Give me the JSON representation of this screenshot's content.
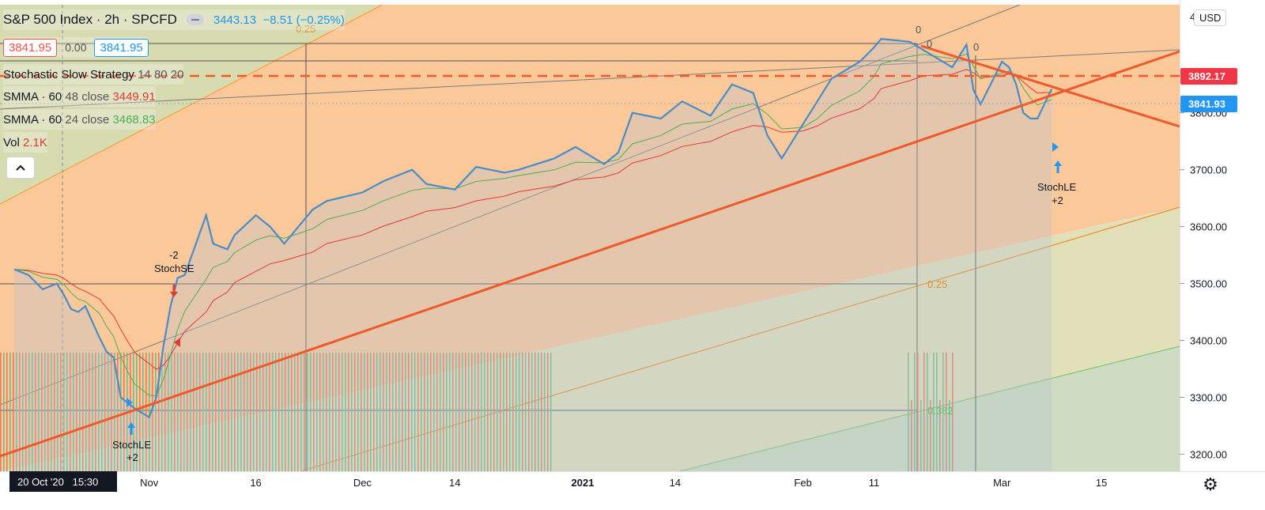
{
  "header": {
    "symbol": "S&P 500 Index",
    "interval": "2h",
    "exchange": "SPCFD",
    "last": "3443.13",
    "change": "−8.51 (−0.25%)",
    "bid": "3841.95",
    "spread": "0.00",
    "ask": "3841.95"
  },
  "indicators": {
    "strategy": "Stochastic Slow Strategy",
    "strategy_params": "14 80 20",
    "smma1_name": "SMMA · 60",
    "smma1_params": "48 close",
    "smma1_value": "3449.91",
    "smma2_name": "SMMA · 60",
    "smma2_params": "24 close",
    "smma2_value": "3468.83",
    "vol_label": "Vol",
    "vol_value": "2.1K"
  },
  "currency": "USD",
  "crosshair_date": "20 Oct '20   15:30",
  "price_tags": {
    "resistance": "3892.17",
    "last": "3841.93"
  },
  "colors": {
    "line": "#4a8cc7",
    "smma_red": "#e53935",
    "smma_green": "#4caf50",
    "trend": "#f05a2a",
    "bg_orange": "#fbc89a",
    "fib_green": "#d9e3bf"
  },
  "chart_data": {
    "type": "line",
    "title": "S&P 500 Index",
    "y_ticks": [
      3200,
      3300,
      3400,
      3500,
      3600,
      3700,
      3800
    ],
    "y_tick_labels": [
      "3200.00",
      "3300.00",
      "3400.00",
      "3500.00",
      "3600.00",
      "3700.00",
      "3800.00"
    ],
    "y_top_label": "4",
    "ylim": [
      3170,
      3990
    ],
    "x_tick_labels": [
      "Nov",
      "16",
      "Dec",
      "14",
      "2021",
      "14",
      "Feb",
      "11",
      "Mar",
      "15"
    ],
    "x_tick_dates": [
      "2020-11-01",
      "2020-11-16",
      "2020-12-01",
      "2020-12-14",
      "2021-01-01",
      "2021-01-14",
      "2021-02-01",
      "2021-02-11",
      "2021-03-01",
      "2021-03-15"
    ],
    "series": [
      {
        "name": "S&P 500 Index",
        "dates": [
          "2020-10-13",
          "2020-10-15",
          "2020-10-17",
          "2020-10-19",
          "2020-10-20",
          "2020-10-21",
          "2020-10-22",
          "2020-10-23",
          "2020-10-25",
          "2020-10-26",
          "2020-10-27",
          "2020-10-28",
          "2020-10-29",
          "2020-10-30",
          "2020-11-01",
          "2020-11-02",
          "2020-11-03",
          "2020-11-04",
          "2020-11-05",
          "2020-11-06",
          "2020-11-09",
          "2020-11-10",
          "2020-11-12",
          "2020-11-13",
          "2020-11-16",
          "2020-11-18",
          "2020-11-20",
          "2020-11-24",
          "2020-11-26",
          "2020-12-01",
          "2020-12-04",
          "2020-12-08",
          "2020-12-10",
          "2020-12-14",
          "2020-12-17",
          "2020-12-21",
          "2020-12-23",
          "2020-12-28",
          "2020-12-31",
          "2021-01-04",
          "2021-01-06",
          "2021-01-08",
          "2021-01-12",
          "2021-01-15",
          "2021-01-19",
          "2021-01-22",
          "2021-01-25",
          "2021-01-27",
          "2021-01-29",
          "2021-02-01",
          "2021-02-03",
          "2021-02-05",
          "2021-02-09",
          "2021-02-11",
          "2021-02-12",
          "2021-02-16",
          "2021-02-18",
          "2021-02-22",
          "2021-02-24",
          "2021-02-25",
          "2021-02-26",
          "2021-03-01",
          "2021-03-02",
          "2021-03-03",
          "2021-03-04",
          "2021-03-05",
          "2021-03-06",
          "2021-03-08"
        ],
        "values": [
          3525,
          3515,
          3490,
          3500,
          3480,
          3455,
          3450,
          3460,
          3405,
          3380,
          3370,
          3300,
          3290,
          3280,
          3265,
          3300,
          3390,
          3460,
          3510,
          3515,
          3620,
          3570,
          3560,
          3585,
          3620,
          3600,
          3570,
          3630,
          3645,
          3660,
          3680,
          3700,
          3675,
          3665,
          3705,
          3695,
          3700,
          3720,
          3740,
          3710,
          3730,
          3800,
          3790,
          3820,
          3795,
          3850,
          3835,
          3760,
          3720,
          3780,
          3820,
          3860,
          3890,
          3915,
          3930,
          3925,
          3910,
          3880,
          3920,
          3840,
          3815,
          3890,
          3880,
          3850,
          3800,
          3790,
          3790,
          3842
        ]
      },
      {
        "name": "SMMA · 60 48 close",
        "color": "red"
      },
      {
        "name": "SMMA · 60 24 close",
        "color": "green"
      }
    ],
    "fib_levels": [
      {
        "label": "0.25"
      },
      {
        "label": "0"
      },
      {
        "label": "0"
      },
      {
        "label": "0"
      },
      {
        "label": "0.25"
      },
      {
        "label": "0.382"
      }
    ],
    "signals": [
      {
        "label": "StochLE",
        "qty": "+2",
        "date": "2020-10-30"
      },
      {
        "label": "StochSE",
        "qty": "-2",
        "date": "2020-11-04"
      },
      {
        "label": "StochLE",
        "qty": "+2",
        "date": "2021-03-05"
      }
    ],
    "grid": false,
    "legend": "top-left"
  }
}
